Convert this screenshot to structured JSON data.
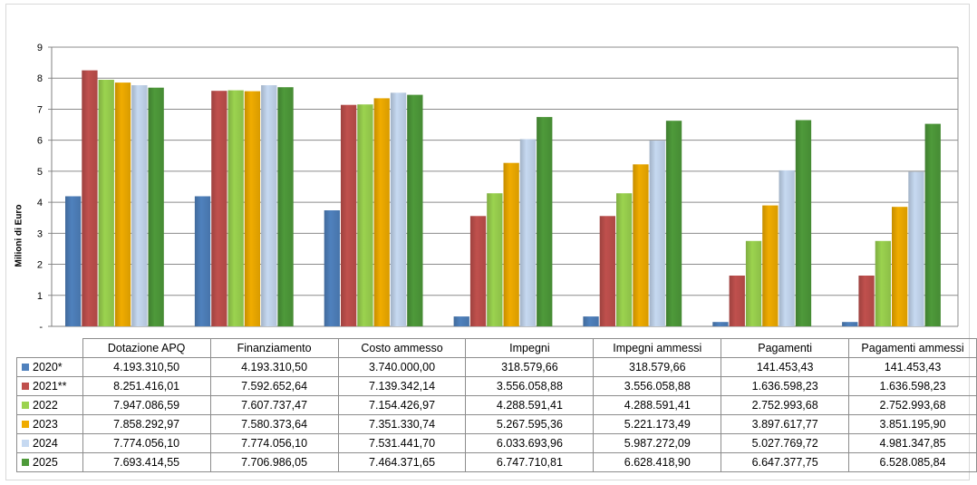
{
  "chart_data": {
    "type": "bar",
    "ylabel": "Milioni di Euro",
    "ylim": [
      0,
      9
    ],
    "yticks": [
      "-",
      "1",
      "2",
      "3",
      "4",
      "5",
      "6",
      "7",
      "8",
      "9"
    ],
    "grid": true,
    "categories": [
      "Dotazione APQ",
      "Finanziamento",
      "Costo ammesso",
      "Impegni",
      "Impegni ammessi",
      "Pagamenti",
      "Pagamenti ammessi"
    ],
    "series": [
      {
        "name": "2020*",
        "color": "#4f81bd",
        "values": [
          4193310.5,
          4193310.5,
          3740000.0,
          318579.66,
          318579.66,
          141453.43,
          141453.43
        ],
        "labels": [
          "4.193.310,50",
          "4.193.310,50",
          "3.740.000,00",
          "318.579,66",
          "318.579,66",
          "141.453,43",
          "141.453,43"
        ]
      },
      {
        "name": "2021**",
        "color": "#c0504d",
        "values": [
          8251416.01,
          7592652.64,
          7139342.14,
          3556058.88,
          3556058.88,
          1636598.23,
          1636598.23
        ],
        "labels": [
          "8.251.416,01",
          "7.592.652,64",
          "7.139.342,14",
          "3.556.058,88",
          "3.556.058,88",
          "1.636.598,23",
          "1.636.598,23"
        ]
      },
      {
        "name": "2022",
        "color": "#9bd34f",
        "values": [
          7947086.59,
          7607737.47,
          7154426.97,
          4288591.41,
          4288591.41,
          2752993.68,
          2752993.68
        ],
        "labels": [
          "7.947.086,59",
          "7.607.737,47",
          "7.154.426,97",
          "4.288.591,41",
          "4.288.591,41",
          "2.752.993,68",
          "2.752.993,68"
        ]
      },
      {
        "name": "2023",
        "color": "#f0ac00",
        "values": [
          7858292.97,
          7580373.64,
          7351330.74,
          5267595.36,
          5221173.49,
          3897617.77,
          3851195.9
        ],
        "labels": [
          "7.858.292,97",
          "7.580.373,64",
          "7.351.330,74",
          "5.267.595,36",
          "5.221.173,49",
          "3.897.617,77",
          "3.851.195,90"
        ]
      },
      {
        "name": "2024",
        "color": "#c6d9f1",
        "values": [
          7774056.1,
          7774056.1,
          7531441.7,
          6033693.96,
          5987272.09,
          5027769.72,
          4981347.85
        ],
        "labels": [
          "7.774.056,10",
          "7.774.056,10",
          "7.531.441,70",
          "6.033.693,96",
          "5.987.272,09",
          "5.027.769,72",
          "4.981.347,85"
        ]
      },
      {
        "name": "2025",
        "color": "#4e9a3a",
        "values": [
          7693414.55,
          7706986.05,
          7464371.65,
          6747710.81,
          6628418.9,
          6647377.75,
          6528085.84
        ],
        "labels": [
          "7.693.414,55",
          "7.706.986,05",
          "7.464.371,65",
          "6.747.710,81",
          "6.628.418,90",
          "6.647.377,75",
          "6.528.085,84"
        ]
      }
    ]
  }
}
